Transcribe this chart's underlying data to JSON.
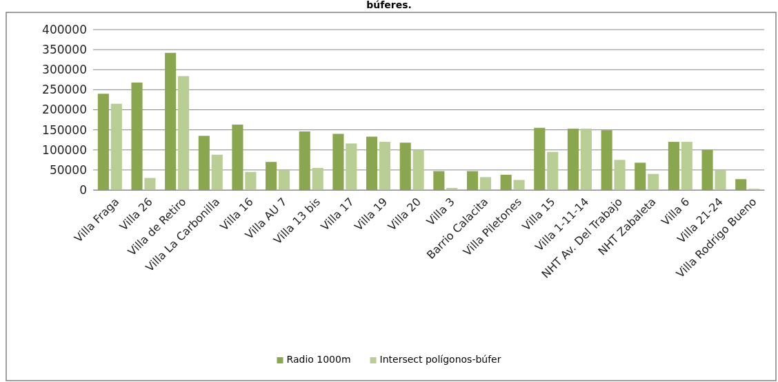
{
  "chart_data": {
    "type": "bar",
    "title": "búferes.",
    "categories": [
      "Villa Fraga",
      "Villa 26",
      "Villa de Retiro",
      "Villa La Carbonilla",
      "Villa 16",
      "Villa AU 7",
      "Villa 13 bis",
      "Villa 17",
      "Villa 19",
      "Villa 20",
      "Villa 3",
      "Barrio Calacita",
      "Villa Piletones",
      "Villa 15",
      "Villa 1-11-14",
      "NHT Av. Del Trabajo",
      "NHT Zabaleta",
      "Villa 6",
      "Villa 21-24",
      "Villa Rodrigo Bueno"
    ],
    "series": [
      {
        "name": "Radio 1000m",
        "color": "#8aa64f",
        "values": [
          240000,
          268000,
          342000,
          135000,
          163000,
          70000,
          146000,
          140000,
          133000,
          118000,
          47000,
          47000,
          38000,
          155000,
          153000,
          149000,
          68000,
          120000,
          100000,
          27000
        ]
      },
      {
        "name": "Intersect polígonos-búfer",
        "color": "#b9ce94",
        "values": [
          215000,
          30000,
          284000,
          88000,
          45000,
          50000,
          55000,
          116000,
          120000,
          100000,
          5000,
          32000,
          25000,
          95000,
          153000,
          75000,
          40000,
          120000,
          50000,
          3000
        ]
      }
    ],
    "ylim": [
      0,
      400000
    ],
    "yticks": [
      0,
      50000,
      100000,
      150000,
      200000,
      250000,
      300000,
      350000,
      400000
    ],
    "grid": "y",
    "legend": "bottom"
  }
}
